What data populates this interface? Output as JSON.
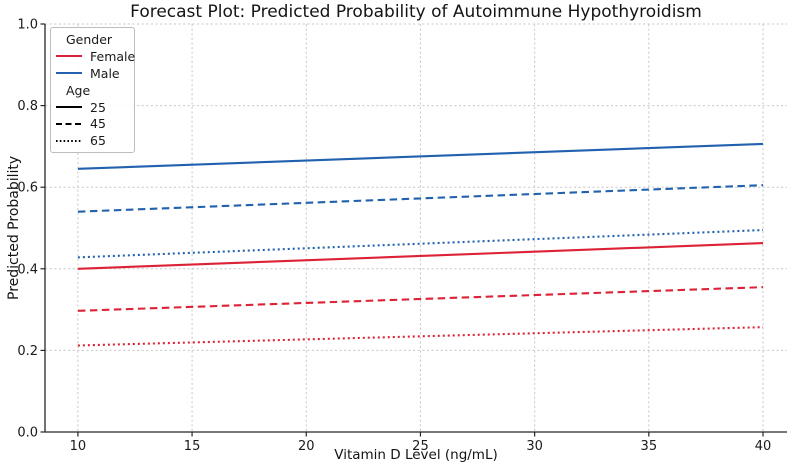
{
  "chart_data": {
    "type": "line",
    "title": "Forecast Plot: Predicted Probability of Autoimmune Hypothyroidism",
    "xlabel": "Vitamin D Level (ng/mL)",
    "ylabel": "Predicted Probability",
    "x": [
      10,
      40
    ],
    "xlim": [
      8.56,
      41.05
    ],
    "ylim": [
      0.0,
      1.0
    ],
    "xticks": [
      10,
      15,
      20,
      25,
      30,
      35,
      40
    ],
    "yticks": [
      0.0,
      0.2,
      0.4,
      0.6,
      0.8,
      1.0
    ],
    "grid": true,
    "grid_style": "dashed-light-gray",
    "legend_position": "upper-left",
    "series": [
      {
        "name": "Male age 25",
        "gender": "Male",
        "age": 25,
        "color": "#2161ae",
        "linestyle": "solid",
        "values": [
          0.645,
          0.706
        ]
      },
      {
        "name": "Male age 45",
        "gender": "Male",
        "age": 45,
        "color": "#2161ae",
        "linestyle": "dashed",
        "values": [
          0.54,
          0.605
        ]
      },
      {
        "name": "Male age 65",
        "gender": "Male",
        "age": 65,
        "color": "#2161ae",
        "linestyle": "dotted",
        "values": [
          0.428,
          0.495
        ]
      },
      {
        "name": "Female age 25",
        "gender": "Female",
        "age": 25,
        "color": "#dc2236",
        "linestyle": "solid",
        "values": [
          0.4,
          0.463
        ]
      },
      {
        "name": "Female age 45",
        "gender": "Female",
        "age": 45,
        "color": "#dc2236",
        "linestyle": "dashed",
        "values": [
          0.297,
          0.355
        ]
      },
      {
        "name": "Female age 65",
        "gender": "Female",
        "age": 65,
        "color": "#dc2236",
        "linestyle": "dotted",
        "values": [
          0.212,
          0.257
        ]
      }
    ]
  },
  "legend": {
    "rows": [
      {
        "type": "header",
        "label": "Gender"
      },
      {
        "type": "item",
        "label": "Female",
        "color": "#dc2236",
        "linestyle": "solid"
      },
      {
        "type": "item",
        "label": "Male",
        "color": "#2161ae",
        "linestyle": "solid"
      },
      {
        "type": "header",
        "label": "Age"
      },
      {
        "type": "item",
        "label": "25",
        "color": "#000000",
        "linestyle": "solid"
      },
      {
        "type": "item",
        "label": "45",
        "color": "#000000",
        "linestyle": "dashed"
      },
      {
        "type": "item",
        "label": "65",
        "color": "#000000",
        "linestyle": "dotted"
      }
    ]
  },
  "colors": {
    "female": "#dc2236",
    "male": "#2161ae",
    "grid": "#c9c9c9",
    "spine": "#262626",
    "text": "#1a1a1a",
    "background": "#ffffff"
  }
}
